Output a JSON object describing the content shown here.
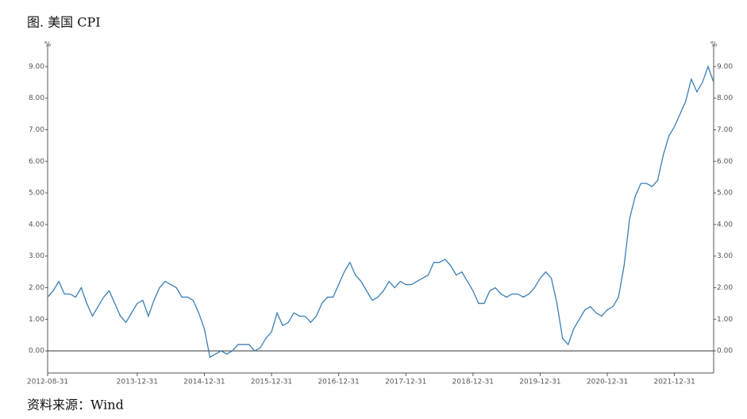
{
  "chart_data": {
    "type": "line",
    "title": "图. 美国 CPI",
    "source": "资料来源：Wind",
    "y_unit": "%",
    "y2_unit": "%",
    "categories": [
      "2012-08-31",
      null,
      null,
      null,
      null,
      null,
      null,
      null,
      null,
      null,
      null,
      null,
      null,
      null,
      null,
      null,
      "2013-12-31",
      null,
      null,
      null,
      null,
      null,
      null,
      null,
      null,
      null,
      null,
      null,
      "2014-12-31",
      null,
      null,
      null,
      null,
      null,
      null,
      null,
      null,
      null,
      null,
      null,
      "2015-12-31",
      null,
      null,
      null,
      null,
      null,
      null,
      null,
      null,
      null,
      null,
      null,
      "2016-12-31",
      null,
      null,
      null,
      null,
      null,
      null,
      null,
      null,
      null,
      null,
      null,
      "2017-12-31",
      null,
      null,
      null,
      null,
      null,
      null,
      null,
      null,
      null,
      null,
      null,
      "2018-12-31",
      null,
      null,
      null,
      null,
      null,
      null,
      null,
      null,
      null,
      null,
      null,
      "2019-12-31",
      null,
      null,
      null,
      null,
      null,
      null,
      null,
      null,
      null,
      null,
      null,
      "2020-12-31",
      null,
      null,
      null,
      null,
      null,
      null,
      null,
      null,
      null,
      null,
      null,
      "2021-12-31",
      null,
      null,
      null,
      null,
      null,
      null,
      null
    ],
    "series": [
      {
        "name": "美国 CPI",
        "color": "#3a7fb5",
        "values": [
          1.7,
          1.9,
          2.2,
          1.8,
          1.8,
          1.7,
          2.0,
          1.5,
          1.1,
          1.4,
          1.7,
          1.9,
          1.5,
          1.1,
          0.9,
          1.2,
          1.5,
          1.6,
          1.1,
          1.6,
          2.0,
          2.2,
          2.1,
          2.0,
          1.7,
          1.7,
          1.6,
          1.2,
          0.7,
          -0.2,
          -0.1,
          0.0,
          -0.1,
          0.0,
          0.2,
          0.2,
          0.2,
          0.0,
          0.1,
          0.4,
          0.6,
          1.2,
          0.8,
          0.9,
          1.2,
          1.1,
          1.1,
          0.9,
          1.1,
          1.5,
          1.7,
          1.7,
          2.1,
          2.5,
          2.8,
          2.4,
          2.2,
          1.9,
          1.6,
          1.7,
          1.9,
          2.2,
          2.0,
          2.2,
          2.1,
          2.1,
          2.2,
          2.3,
          2.4,
          2.8,
          2.8,
          2.9,
          2.7,
          2.4,
          2.5,
          2.2,
          1.9,
          1.5,
          1.5,
          1.9,
          2.0,
          1.8,
          1.7,
          1.8,
          1.8,
          1.7,
          1.8,
          2.0,
          2.3,
          2.5,
          2.3,
          1.5,
          0.4,
          0.2,
          0.7,
          1.0,
          1.3,
          1.4,
          1.2,
          1.1,
          1.3,
          1.4,
          1.7,
          2.7,
          4.2,
          4.9,
          5.3,
          5.3,
          5.2,
          5.4,
          6.2,
          6.8,
          7.1,
          7.5,
          7.9,
          8.6,
          8.2,
          8.5,
          9.0,
          8.5
        ]
      }
    ],
    "ylim": [
      -0.7,
      9.7
    ],
    "yticks": [
      {
        "value": 0,
        "label": "0.00"
      },
      {
        "value": 1,
        "label": "1.00"
      },
      {
        "value": 2,
        "label": "2.00"
      },
      {
        "value": 3,
        "label": "3.00"
      },
      {
        "value": 4,
        "label": "4.00"
      },
      {
        "value": 5,
        "label": "5.00"
      },
      {
        "value": 6,
        "label": "6.00"
      },
      {
        "value": 7,
        "label": "7.00"
      },
      {
        "value": 8,
        "label": "8.00"
      },
      {
        "value": 9,
        "label": "9.00"
      }
    ],
    "y2lim": [
      -0.7,
      9.7
    ],
    "y2ticks": [
      {
        "value": 0,
        "label": "0.00"
      },
      {
        "value": 1,
        "label": "1.00"
      },
      {
        "value": 2,
        "label": "2.00"
      },
      {
        "value": 3,
        "label": "3.00"
      },
      {
        "value": 4,
        "label": "4.00"
      },
      {
        "value": 5,
        "label": "5.00"
      },
      {
        "value": 6,
        "label": "6.00"
      },
      {
        "value": 7,
        "label": "7.00"
      },
      {
        "value": 8,
        "label": "8.00"
      },
      {
        "value": 9,
        "label": "9.00"
      }
    ],
    "grid": false
  }
}
